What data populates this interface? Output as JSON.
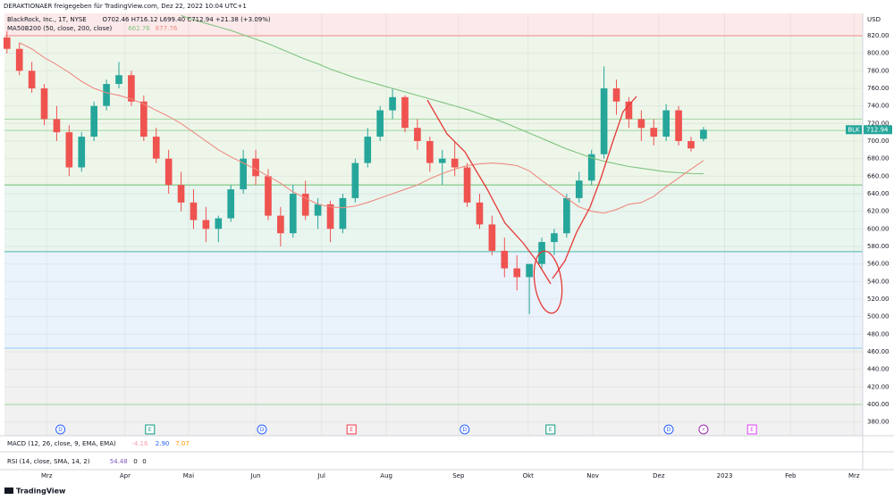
{
  "chart_data": {
    "type": "candlestick",
    "header": "DERAKTIONAER freigegeben für TradingView.com, Dez 22, 2022 10:04 UTC+1",
    "title": "BlackRock, Inc., 1T, NYSE",
    "quote": "O702.46 H716.12 L699.40 C712.94 +21.38 (+3.09%)",
    "ma_label": "MA50B200 (50, close, 200, close)",
    "currency": "USD",
    "symbol_tag": "BLK",
    "up_color": "#26a69a",
    "down_color": "#ef5350",
    "open": [
      818,
      805,
      780,
      760,
      725,
      710,
      670,
      705,
      740,
      765,
      775,
      745,
      705,
      680,
      650,
      630,
      610,
      600,
      612,
      645,
      680,
      660,
      615,
      595,
      640,
      615,
      628,
      600,
      635,
      675,
      705,
      735,
      750,
      715,
      700,
      675,
      680,
      670,
      630,
      605,
      575,
      555,
      545,
      560,
      585,
      595,
      635,
      655,
      685,
      760,
      745,
      725,
      715,
      705,
      735,
      700,
      702.46
    ],
    "high": [
      825,
      812,
      790,
      765,
      740,
      718,
      710,
      745,
      770,
      790,
      780,
      752,
      715,
      690,
      665,
      645,
      625,
      615,
      650,
      690,
      690,
      668,
      625,
      650,
      655,
      635,
      632,
      640,
      680,
      715,
      740,
      760,
      752,
      725,
      705,
      690,
      700,
      675,
      640,
      615,
      590,
      570,
      560,
      590,
      600,
      640,
      665,
      690,
      785,
      770,
      750,
      735,
      725,
      742,
      740,
      705,
      716.12
    ],
    "low": [
      800,
      775,
      755,
      718,
      700,
      660,
      665,
      700,
      735,
      760,
      740,
      700,
      675,
      640,
      620,
      600,
      585,
      585,
      608,
      640,
      650,
      610,
      580,
      590,
      610,
      600,
      585,
      595,
      630,
      670,
      700,
      725,
      710,
      690,
      665,
      650,
      660,
      625,
      600,
      570,
      545,
      530,
      503,
      555,
      570,
      590,
      630,
      650,
      680,
      730,
      715,
      700,
      695,
      700,
      695,
      688,
      699.4
    ],
    "close": [
      805,
      780,
      760,
      725,
      710,
      670,
      705,
      740,
      765,
      775,
      745,
      705,
      680,
      650,
      630,
      610,
      600,
      612,
      645,
      680,
      660,
      615,
      595,
      640,
      615,
      628,
      600,
      635,
      675,
      705,
      735,
      750,
      715,
      700,
      675,
      680,
      670,
      630,
      605,
      575,
      555,
      545,
      560,
      585,
      595,
      635,
      655,
      685,
      760,
      745,
      725,
      715,
      705,
      735,
      700,
      691.56,
      712.94
    ],
    "series": [
      {
        "color": "#7fc47f",
        "values": [
          null,
          null,
          null,
          null,
          null,
          null,
          null,
          null,
          null,
          null,
          null,
          null,
          null,
          null,
          843,
          838,
          834,
          830,
          826,
          821,
          816,
          811,
          805,
          799,
          793,
          788,
          782,
          777,
          772,
          768,
          764,
          760,
          756,
          752,
          748,
          744,
          740,
          736,
          731,
          726,
          721,
          715,
          709,
          703,
          697,
          691,
          686,
          681,
          677,
          674,
          671,
          669,
          667,
          665,
          664,
          663,
          662.76
        ]
      },
      {
        "color": "#ef8a80",
        "values": [
          null,
          812,
          805,
          795,
          787,
          778,
          768,
          760,
          755,
          752,
          748,
          742,
          735,
          728,
          720,
          710,
          700,
          690,
          682,
          675,
          668,
          660,
          652,
          642,
          635,
          628,
          625,
          624,
          626,
          630,
          635,
          640,
          645,
          650,
          657,
          663,
          668,
          672,
          674,
          675,
          674,
          672,
          666,
          655,
          645,
          635,
          625,
          620,
          618,
          622,
          628,
          630,
          637,
          648,
          658,
          668,
          677.76
        ]
      }
    ],
    "xlim": [
      -0.2,
      68.8
    ],
    "xticks": [
      {
        "value": 3.2,
        "label": "Mrz"
      },
      {
        "value": 9.5,
        "label": "Apr"
      },
      {
        "value": 14.6,
        "label": "Mai"
      },
      {
        "value": 20.0,
        "label": "Jun"
      },
      {
        "value": 25.3,
        "label": "Jul"
      },
      {
        "value": 30.5,
        "label": "Aug"
      },
      {
        "value": 36.3,
        "label": "Sep"
      },
      {
        "value": 41.9,
        "label": "Okt"
      },
      {
        "value": 47.1,
        "label": "Nov"
      },
      {
        "value": 52.4,
        "label": "Dez"
      },
      {
        "value": 57.7,
        "label": "2023"
      },
      {
        "value": 63.0,
        "label": "Feb"
      },
      {
        "value": 68.1,
        "label": "Mrz"
      }
    ],
    "ylim": [
      364.4,
      845.4
    ],
    "yticks": [
      {
        "value": 380,
        "label": "380.00"
      },
      {
        "value": 400,
        "label": "400.00"
      },
      {
        "value": 420,
        "label": "420.00"
      },
      {
        "value": 440,
        "label": "440.00"
      },
      {
        "value": 460,
        "label": "460.00"
      },
      {
        "value": 480,
        "label": "480.00"
      },
      {
        "value": 500,
        "label": "500.00"
      },
      {
        "value": 520,
        "label": "520.00"
      },
      {
        "value": 540,
        "label": "540.00"
      },
      {
        "value": 560,
        "label": "560.00"
      },
      {
        "value": 580,
        "label": "580.00"
      },
      {
        "value": 600,
        "label": "600.00"
      },
      {
        "value": 620,
        "label": "620.00"
      },
      {
        "value": 640,
        "label": "640.00"
      },
      {
        "value": 660,
        "label": "660.00"
      },
      {
        "value": 680,
        "label": "680.00"
      },
      {
        "value": 700,
        "label": "700.00"
      },
      {
        "value": 720,
        "label": "720.00"
      },
      {
        "value": 740,
        "label": "740.00"
      },
      {
        "value": 760,
        "label": "760.00"
      },
      {
        "value": 780,
        "label": "780.00"
      },
      {
        "value": 800,
        "label": "800.00"
      },
      {
        "value": 820,
        "label": "820.00"
      }
    ],
    "grid": true,
    "zones": [
      {
        "from": 820,
        "to": 845.4,
        "color": "#fce9e9"
      },
      {
        "from": 650,
        "to": 820,
        "color": "#eef6ea"
      },
      {
        "from": 574,
        "to": 650,
        "color": "#e9f5ef"
      },
      {
        "from": 464,
        "to": 574,
        "color": "#eaf2fb"
      },
      {
        "from": 364.4,
        "to": 464,
        "color": "#f1f1f1"
      }
    ],
    "levels": [
      {
        "value": 820,
        "color": "#f08a8a"
      },
      {
        "value": 725,
        "color": "#9fd3a1"
      },
      {
        "value": 712,
        "color": "#9fd3a1"
      },
      {
        "value": 650,
        "color": "#6abf6e"
      },
      {
        "value": 574,
        "color": "#4db6ac"
      },
      {
        "value": 464,
        "color": "#90caf9"
      },
      {
        "value": 400,
        "color": "#9fd3a1"
      }
    ],
    "events": [
      {
        "label": "D",
        "x": 4.3,
        "color": "#2962ff"
      },
      {
        "label": "E",
        "x": 11.5,
        "color": "#089981"
      },
      {
        "label": "D",
        "x": 20.5,
        "color": "#2962ff"
      },
      {
        "label": "E",
        "x": 27.7,
        "color": "#f23645"
      },
      {
        "label": "D",
        "x": 36.8,
        "color": "#2962ff"
      },
      {
        "label": "E",
        "x": 43.7,
        "color": "#089981"
      },
      {
        "label": "D",
        "x": 53.2,
        "color": "#2962ff"
      },
      {
        "label": "⚡",
        "x": 56.0,
        "color": "#9c27b0"
      },
      {
        "label": "E",
        "x": 59.9,
        "color": "#e040fb"
      }
    ],
    "indicators": [
      {
        "label": "MACD (12, 26, close, 9, EMA, EMA)",
        "values": [
          {
            "text": "-4.16",
            "color": "#f7a1b0"
          },
          {
            "text": "2.90",
            "color": "#2962ff"
          },
          {
            "text": "7.07",
            "color": "#ff9800"
          }
        ]
      },
      {
        "label": "RSI (14, close, SMA, 14, 2)",
        "values": [
          {
            "text": "54.48",
            "color": "#7e57c2"
          },
          {
            "text": "0",
            "color": "#131722"
          },
          {
            "text": "0",
            "color": "#131722"
          }
        ]
      }
    ],
    "footer": "TradingView"
  }
}
